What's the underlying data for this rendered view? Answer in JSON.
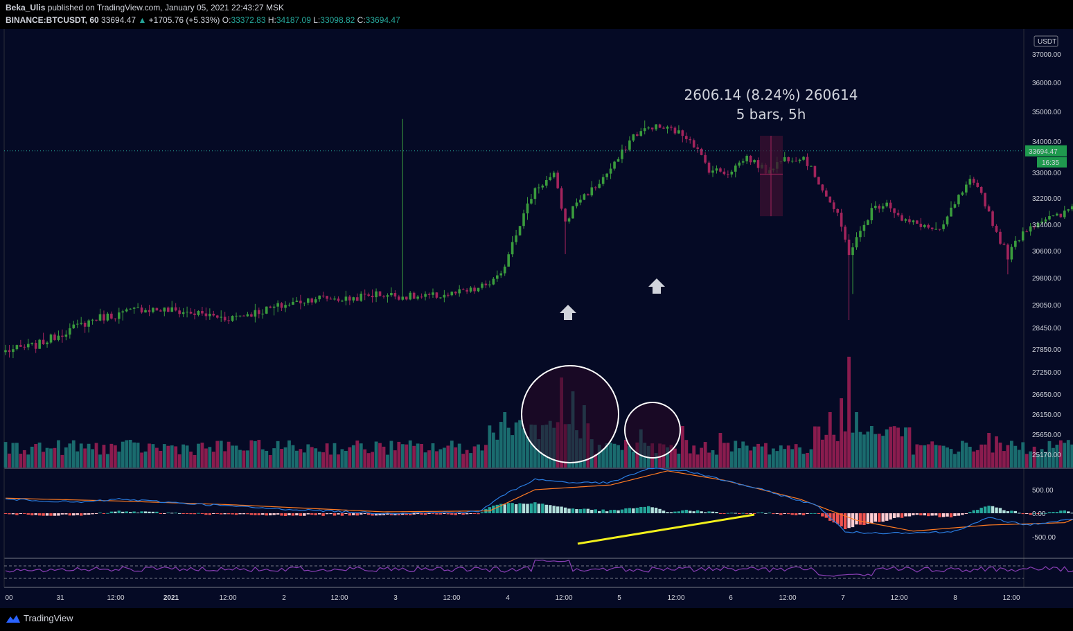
{
  "header": {
    "author": "Beka_Ulis",
    "published_text": "published on TradingView.com, January 05, 2021 22:43:27 MSK",
    "symbol": "BINANCE:BTCUSDT, 60",
    "last": "33694.47",
    "change_arrow": "▲",
    "change": "+1705.76 (+5.33%)",
    "o_label": "O:",
    "o_value": "33372.83",
    "h_label": "H:",
    "h_value": "34187.09",
    "l_label": "L:",
    "l_value": "33098.82",
    "c_label": "C:",
    "c_value": "33694.47"
  },
  "footer": {
    "brand": "TradingView"
  },
  "colors": {
    "background": "#050a25",
    "up": "#3a9c3d",
    "down": "#a3245c",
    "vol_up": "#1a6b6e",
    "vol_down": "#8a1c4e",
    "macd_line": "#2a7de1",
    "signal_line": "#ff7b22",
    "rsi_line": "#8a3fb5",
    "trendline": "#f2f01c",
    "price_label": "#1f9a4e"
  },
  "chart_data": {
    "type": "candlestick",
    "symbol": "BINANCE:BTCUSDT",
    "interval": "60",
    "quote_currency": "USDT",
    "last_price_label": "33694.47",
    "countdown_label": "16:35",
    "y_ticks": [
      "37000.00",
      "36000.00",
      "35000.00",
      "34000.00",
      "33000.00",
      "32200.00",
      "31400.00",
      "30600.00",
      "29800.00",
      "29050.00",
      "28450.00",
      "27850.00",
      "27250.00",
      "26650.00",
      "26150.00",
      "25650.00",
      "25170.00"
    ],
    "macd_ticks": [
      "500.00",
      "0.00",
      "-500.00"
    ],
    "x_ticks": [
      "00",
      "31",
      "12:00",
      "2021",
      "12:00",
      "2",
      "12:00",
      "3",
      "12:00",
      "4",
      "12:00",
      "5",
      "12:00",
      "6",
      "12:00",
      "7",
      "12:00",
      "8",
      "12:00"
    ],
    "price_anchors": [
      [
        0,
        27800
      ],
      [
        8,
        27950
      ],
      [
        16,
        28350
      ],
      [
        24,
        28700
      ],
      [
        30,
        28800
      ],
      [
        36,
        28950
      ],
      [
        44,
        28900
      ],
      [
        52,
        28800
      ],
      [
        58,
        28700
      ],
      [
        66,
        28850
      ],
      [
        74,
        29050
      ],
      [
        82,
        29250
      ],
      [
        90,
        29200
      ],
      [
        98,
        29350
      ],
      [
        104,
        29300
      ],
      [
        110,
        29250
      ],
      [
        118,
        29350
      ],
      [
        124,
        29450
      ],
      [
        128,
        29650
      ],
      [
        131,
        29850
      ],
      [
        134,
        30900
      ],
      [
        137,
        31700
      ],
      [
        140,
        32500
      ],
      [
        145,
        32900
      ],
      [
        148,
        31450
      ],
      [
        151,
        32100
      ],
      [
        156,
        32550
      ],
      [
        161,
        33250
      ],
      [
        166,
        34200
      ],
      [
        171,
        34500
      ],
      [
        176,
        34400
      ],
      [
        181,
        34100
      ],
      [
        186,
        33100
      ],
      [
        191,
        33000
      ],
      [
        196,
        33500
      ],
      [
        201,
        33050
      ],
      [
        206,
        33450
      ],
      [
        211,
        33500
      ],
      [
        216,
        32500
      ],
      [
        220,
        31650
      ],
      [
        223,
        30550
      ],
      [
        226,
        31150
      ],
      [
        229,
        31850
      ],
      [
        233,
        32100
      ],
      [
        237,
        31500
      ],
      [
        242,
        31400
      ],
      [
        247,
        31150
      ],
      [
        251,
        32050
      ],
      [
        255,
        32700
      ],
      [
        258,
        32350
      ],
      [
        262,
        31150
      ],
      [
        265,
        30450
      ],
      [
        269,
        31200
      ],
      [
        274,
        31550
      ],
      [
        279,
        31650
      ],
      [
        284,
        32150
      ],
      [
        288,
        32800
      ],
      [
        291,
        33700
      ]
    ],
    "measure": {
      "text_line1": "2606.14 (8.24%) 260614",
      "text_line2": "5 bars, 5h"
    },
    "annotations": [
      "up-arrow at low near 28900",
      "up-arrow at low near 29900",
      "volume spike circles",
      "MACD bullish divergence trendline"
    ]
  }
}
